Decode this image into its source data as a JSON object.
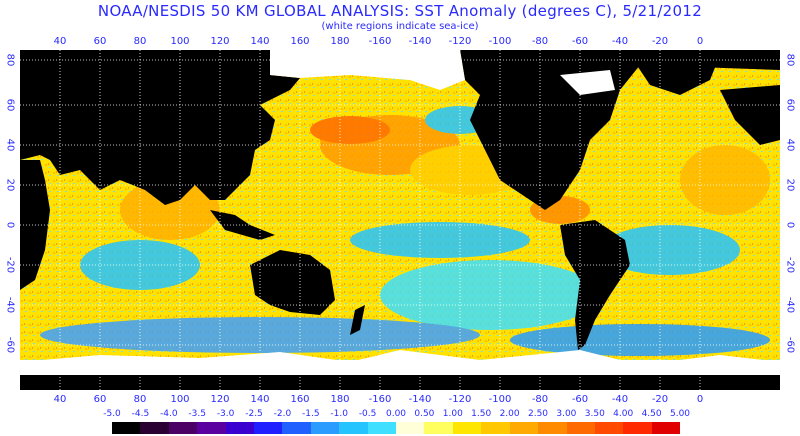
{
  "title": "NOAA/NESDIS 50 KM GLOBAL ANALYSIS: SST Anomaly (degrees C), 5/21/2012",
  "subtitle": "(white regions indicate sea-ice)",
  "lon_labels": [
    "40",
    "60",
    "80",
    "100",
    "120",
    "140",
    "160",
    "180",
    "-160",
    "-140",
    "-120",
    "-100",
    "-80",
    "-60",
    "-40",
    "-20",
    "0"
  ],
  "lat_labels": [
    "80",
    "60",
    "40",
    "20",
    "0",
    "-20",
    "-40",
    "-60"
  ],
  "scale_labels": [
    "-5.0",
    "-4.5",
    "-4.0",
    "-3.5",
    "-3.0",
    "-2.5",
    "-2.0",
    "-1.5",
    "-1.0",
    "-0.5",
    "0.00",
    "0.50",
    "1.00",
    "1.50",
    "2.00",
    "2.50",
    "3.00",
    "3.50",
    "4.00",
    "4.50",
    "5.00"
  ],
  "scale_colors": [
    "#000000",
    "#2a0033",
    "#4b0066",
    "#5a00a0",
    "#3a00d0",
    "#1f1fff",
    "#1f60ff",
    "#2a9cff",
    "#25c4ff",
    "#3fe0ff",
    "#ffffd8",
    "#ffff60",
    "#ffe600",
    "#ffc800",
    "#ffaa00",
    "#ff8a00",
    "#ff6a00",
    "#ff4a00",
    "#ff2a00",
    "#e00000"
  ],
  "colors": {
    "land": "#000000",
    "sea_ice": "#ffffff",
    "grid": "#ffffff",
    "text": "#2a2aff"
  }
}
